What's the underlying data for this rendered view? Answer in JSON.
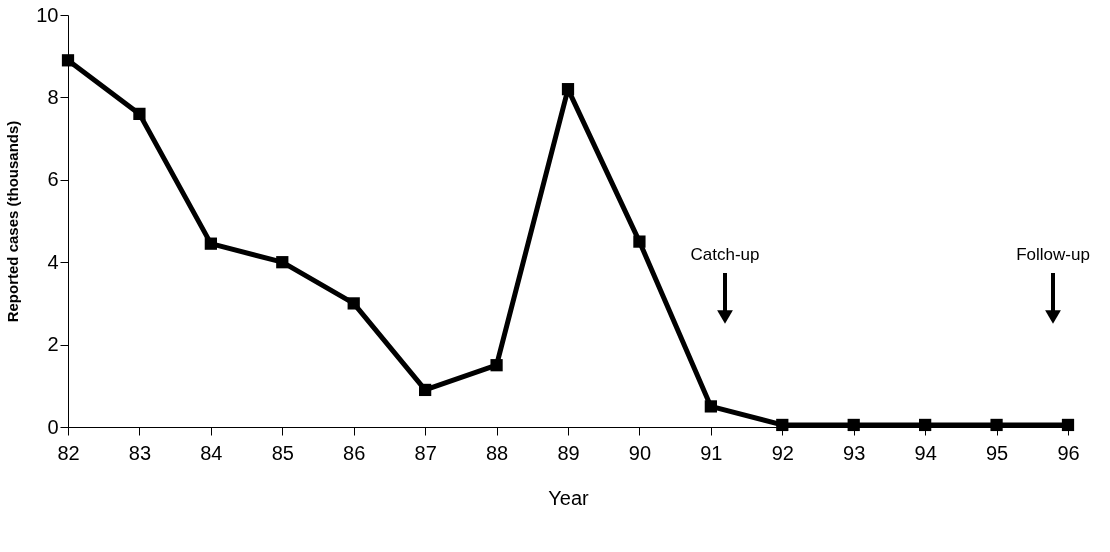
{
  "chart_data": {
    "type": "line",
    "xlabel": "Year",
    "ylabel": "Reported cases (thousands)",
    "categories": [
      "82",
      "83",
      "84",
      "85",
      "86",
      "87",
      "88",
      "89",
      "90",
      "91",
      "92",
      "93",
      "94",
      "95",
      "96"
    ],
    "series": [
      {
        "color": "#000000",
        "values": [
          8.9,
          7.6,
          4.45,
          4.0,
          3.0,
          0.9,
          1.5,
          8.2,
          4.5,
          0.5,
          0.05,
          0.05,
          0.05,
          0.05,
          0.05
        ]
      }
    ],
    "ylim": [
      0,
      10
    ],
    "yticks": [
      0,
      2,
      4,
      6,
      8,
      10
    ],
    "grid": false,
    "marker": "square",
    "line_style": "solid",
    "annotations": [
      "Catch-up",
      "Follow-up"
    ]
  }
}
